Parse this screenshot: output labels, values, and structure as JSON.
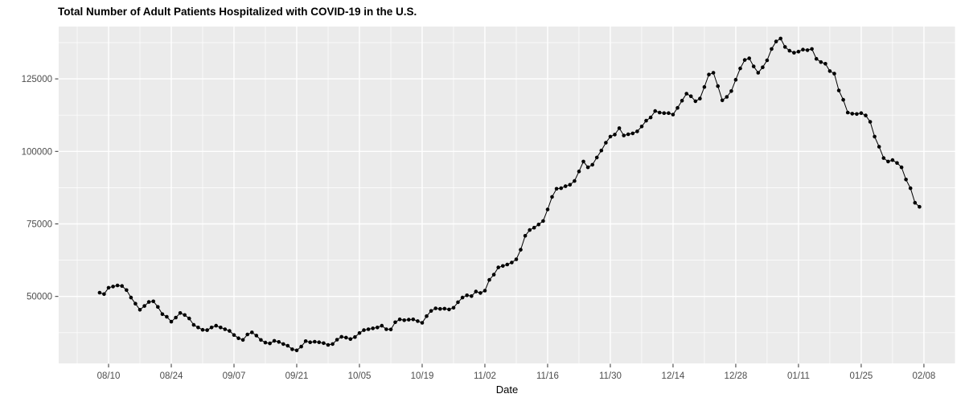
{
  "chart_data": {
    "type": "line",
    "marker": "point",
    "title": "Total Number of Adult Patients Hospitalized with COVID-19 in the U.S.",
    "xlabel": "Date",
    "ylabel": "",
    "legend": "none",
    "grid": "on",
    "colors": {
      "panel_bg": "#EBEBEB",
      "grid": "#FFFFFF",
      "series": "#000000",
      "tick_text": "#4D4D4D",
      "tick_mark": "#333333",
      "title_text": "#000000"
    },
    "x_axis": {
      "label": "Date",
      "tick_labels": [
        "08/10",
        "08/24",
        "09/07",
        "09/21",
        "10/05",
        "10/19",
        "11/02",
        "11/16",
        "11/30",
        "12/14",
        "12/28",
        "01/11",
        "01/25",
        "02/08"
      ],
      "tick_day_index": [
        2,
        16,
        30,
        44,
        58,
        72,
        86,
        100,
        114,
        128,
        142,
        156,
        170,
        184
      ],
      "minor_day_index": [
        -5,
        9,
        23,
        37,
        51,
        65,
        79,
        93,
        107,
        121,
        135,
        149,
        163,
        177,
        191
      ]
    },
    "y_axis": {
      "tick_labels": [
        "50000",
        "75000",
        "100000",
        "125000"
      ],
      "tick_values": [
        50000,
        75000,
        100000,
        125000
      ],
      "minor_values": [
        37500,
        62500,
        87500,
        112500,
        137500
      ],
      "approx_visible_range": [
        25000,
        143000
      ]
    },
    "dates": [
      "08/08",
      "08/09",
      "08/10",
      "08/11",
      "08/12",
      "08/13",
      "08/14",
      "08/15",
      "08/16",
      "08/17",
      "08/18",
      "08/19",
      "08/20",
      "08/21",
      "08/22",
      "08/23",
      "08/24",
      "08/25",
      "08/26",
      "08/27",
      "08/28",
      "08/29",
      "08/30",
      "08/31",
      "09/01",
      "09/02",
      "09/03",
      "09/04",
      "09/05",
      "09/06",
      "09/07",
      "09/08",
      "09/09",
      "09/10",
      "09/11",
      "09/12",
      "09/13",
      "09/14",
      "09/15",
      "09/16",
      "09/17",
      "09/18",
      "09/19",
      "09/20",
      "09/21",
      "09/22",
      "09/23",
      "09/24",
      "09/25",
      "09/26",
      "09/27",
      "09/28",
      "09/29",
      "09/30",
      "10/01",
      "10/02",
      "10/03",
      "10/04",
      "10/05",
      "10/06",
      "10/07",
      "10/08",
      "10/09",
      "10/10",
      "10/11",
      "10/12",
      "10/13",
      "10/14",
      "10/15",
      "10/16",
      "10/17",
      "10/18",
      "10/19",
      "10/20",
      "10/21",
      "10/22",
      "10/23",
      "10/24",
      "10/25",
      "10/26",
      "10/27",
      "10/28",
      "10/29",
      "10/30",
      "10/31",
      "11/01",
      "11/02",
      "11/03",
      "11/04",
      "11/05",
      "11/06",
      "11/07",
      "11/08",
      "11/09",
      "11/10",
      "11/11",
      "11/12",
      "11/13",
      "11/14",
      "11/15",
      "11/16",
      "11/17",
      "11/18",
      "11/19",
      "11/20",
      "11/21",
      "11/22",
      "11/23",
      "11/24",
      "11/25",
      "11/26",
      "11/27",
      "11/28",
      "11/29",
      "11/30",
      "12/01",
      "12/02",
      "12/03",
      "12/04",
      "12/05",
      "12/06",
      "12/07",
      "12/08",
      "12/09",
      "12/10",
      "12/11",
      "12/12",
      "12/13",
      "12/14",
      "12/15",
      "12/16",
      "12/17",
      "12/18",
      "12/19",
      "12/20",
      "12/21",
      "12/22",
      "12/23",
      "12/24",
      "12/25",
      "12/26",
      "12/27",
      "12/28",
      "12/29",
      "12/30",
      "12/31",
      "01/01",
      "01/02",
      "01/03",
      "01/04",
      "01/05",
      "01/06",
      "01/07",
      "01/08",
      "01/09",
      "01/10",
      "01/11",
      "01/12",
      "01/13",
      "01/14",
      "01/15",
      "01/16",
      "01/17",
      "01/18",
      "01/19",
      "01/20",
      "01/21",
      "01/22",
      "01/23",
      "01/24",
      "01/25",
      "01/26",
      "01/27",
      "01/28",
      "01/29",
      "01/30",
      "01/31",
      "02/01",
      "02/02",
      "02/03",
      "02/04",
      "02/05",
      "02/06",
      "02/07"
    ],
    "values": [
      51300,
      50800,
      53000,
      53400,
      53800,
      53600,
      52200,
      49600,
      47500,
      45400,
      46700,
      48100,
      48300,
      46400,
      43900,
      43000,
      41300,
      42700,
      44300,
      43600,
      42400,
      40200,
      39300,
      38500,
      38400,
      39300,
      39900,
      39300,
      38700,
      38100,
      36700,
      35600,
      35000,
      36900,
      37600,
      36500,
      35000,
      34100,
      33800,
      34700,
      34300,
      33600,
      33000,
      31800,
      31400,
      32700,
      34600,
      34200,
      34400,
      34200,
      33900,
      33300,
      33600,
      35100,
      36100,
      35800,
      35300,
      36000,
      37400,
      38400,
      38700,
      39000,
      39300,
      39900,
      38700,
      38600,
      41100,
      42100,
      41800,
      42000,
      42100,
      41500,
      40900,
      43200,
      45000,
      45900,
      45700,
      45800,
      45500,
      46100,
      48000,
      49600,
      50400,
      50100,
      51700,
      51200,
      52000,
      55700,
      57500,
      60000,
      60500,
      61000,
      61700,
      62800,
      66100,
      70900,
      72900,
      73700,
      74800,
      76000,
      80000,
      84300,
      87100,
      87300,
      88000,
      88500,
      89800,
      93100,
      96500,
      94500,
      95400,
      97900,
      100300,
      103000,
      105100,
      105800,
      108000,
      105500,
      105900,
      106200,
      106900,
      108600,
      110600,
      111700,
      113900,
      113400,
      113200,
      113200,
      112700,
      115000,
      117500,
      119900,
      119000,
      117300,
      118200,
      122200,
      126500,
      127100,
      122500,
      117600,
      118800,
      120800,
      124700,
      128600,
      131500,
      132100,
      129300,
      127100,
      129000,
      131400,
      135300,
      137900,
      138900,
      136000,
      134700,
      134000,
      134400,
      135100,
      134900,
      135300,
      131900,
      130800,
      130200,
      127700,
      126800,
      121000,
      117800,
      113400,
      113000,
      112900,
      113200,
      112400,
      110200,
      105100,
      101600,
      97700,
      96500,
      97000,
      96000,
      94500,
      90300,
      87300,
      82300,
      80900
    ]
  }
}
